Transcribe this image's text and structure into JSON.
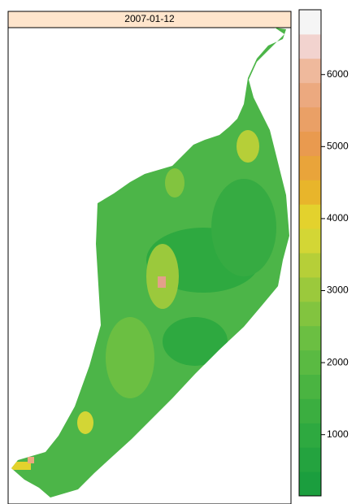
{
  "chart_data": {
    "type": "levelplot",
    "title": "2007-01-12",
    "zlim": [
      150,
      6900
    ],
    "zticks": [
      1000,
      2000,
      3000,
      4000,
      5000,
      6000
    ],
    "colors": [
      "#1b9e3e",
      "#24a33f",
      "#2ea940",
      "#3bae40",
      "#4ab441",
      "#5aba42",
      "#6bbf42",
      "#82c43f",
      "#9bc93c",
      "#b6cf38",
      "#d3d635",
      "#e3d22d",
      "#e8b52b",
      "#e9a43a",
      "#e99a4f",
      "#eaa066",
      "#eca97f",
      "#efb99c",
      "#f2d3cf",
      "#f5f5f5"
    ],
    "strip_color": "#ffe5cc"
  }
}
